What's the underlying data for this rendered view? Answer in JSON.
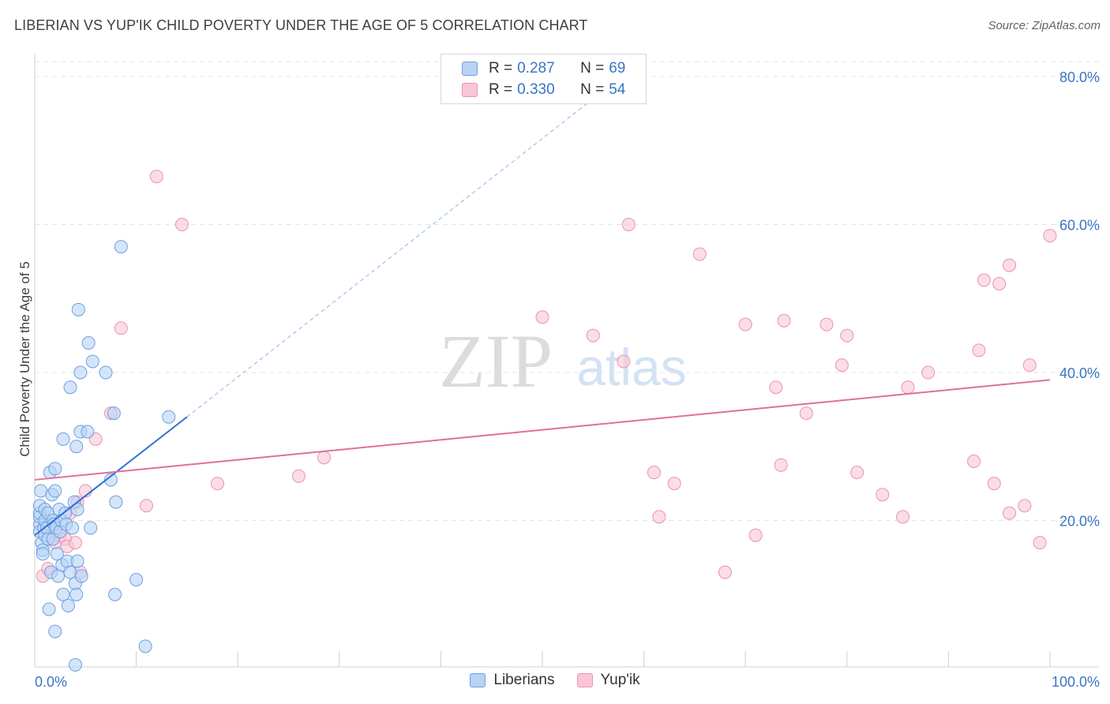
{
  "title": "LIBERIAN VS YUP'IK CHILD POVERTY UNDER THE AGE OF 5 CORRELATION CHART",
  "source": "Source: ZipAtlas.com",
  "watermark": {
    "zip": "ZIP",
    "atlas": "atlas"
  },
  "legend": {
    "rows": [
      {
        "r_label": "R =",
        "r_value": "0.287",
        "n_label": "N =",
        "n_value": "69"
      },
      {
        "r_label": "R =",
        "r_value": "0.330",
        "n_label": "N =",
        "n_value": "54"
      }
    ]
  },
  "bottom_legend": {
    "liberians": "Liberians",
    "yupik": "Yup'ik"
  },
  "colors": {
    "liberians_fill": "#b8d3f5",
    "liberians_stroke": "#6d9fe0",
    "liberians_line": "#2f6fd1",
    "yupik_fill": "#f8c6d6",
    "yupik_stroke": "#ea93b0",
    "yupik_line": "#e07097",
    "tick_text": "#3a75c4",
    "grid": "#e3e3e3"
  },
  "chart_data": {
    "type": "scatter",
    "title": "LIBERIAN VS YUP'IK CHILD POVERTY UNDER THE AGE OF 5 CORRELATION CHART",
    "xlabel": "",
    "ylabel": "Child Poverty Under the Age of 5",
    "xlim": [
      0,
      100
    ],
    "ylim": [
      0,
      80
    ],
    "x_tick_labels": {
      "0": "0.0%",
      "100": "100.0%"
    },
    "y_ticks": [
      20,
      40,
      60,
      80
    ],
    "y_tick_labels": [
      "20.0%",
      "40.0%",
      "60.0%",
      "80.0%"
    ],
    "grid": true,
    "legend_position": "top-center",
    "series": [
      {
        "name": "Liberians",
        "r": 0.287,
        "n": 69,
        "trend": {
          "x": [
            0,
            15
          ],
          "y": [
            18,
            34
          ],
          "extended_x": [
            15,
            55
          ],
          "extended_y": [
            34,
            77
          ]
        },
        "points": [
          [
            0.5,
            19.5
          ],
          [
            0.5,
            18.5
          ],
          [
            0.5,
            20.5
          ],
          [
            0.5,
            21
          ],
          [
            0.5,
            22
          ],
          [
            0.6,
            24
          ],
          [
            0.7,
            17
          ],
          [
            0.8,
            16
          ],
          [
            0.8,
            15.5
          ],
          [
            0.9,
            19
          ],
          [
            1,
            20
          ],
          [
            1,
            18
          ],
          [
            1,
            21.5
          ],
          [
            1.2,
            19
          ],
          [
            1.3,
            21
          ],
          [
            1.3,
            17.5
          ],
          [
            1.4,
            8
          ],
          [
            1.5,
            26.5
          ],
          [
            1.6,
            13
          ],
          [
            1.7,
            23.5
          ],
          [
            1.8,
            20
          ],
          [
            1.8,
            17.5
          ],
          [
            1.9,
            19.5
          ],
          [
            2,
            24
          ],
          [
            2,
            27
          ],
          [
            2,
            5
          ],
          [
            2.1,
            19
          ],
          [
            2.2,
            15.5
          ],
          [
            2.3,
            12.5
          ],
          [
            2.4,
            21.5
          ],
          [
            2.5,
            18.5
          ],
          [
            2.6,
            20
          ],
          [
            2.7,
            14
          ],
          [
            2.8,
            10
          ],
          [
            2.8,
            31
          ],
          [
            3,
            21
          ],
          [
            3.1,
            19.5
          ],
          [
            3.2,
            14.5
          ],
          [
            3.3,
            8.5
          ],
          [
            3.5,
            38
          ],
          [
            3.5,
            13
          ],
          [
            3.7,
            19
          ],
          [
            3.9,
            22.5
          ],
          [
            4,
            0.5
          ],
          [
            4,
            11.5
          ],
          [
            4.1,
            30
          ],
          [
            4.1,
            10
          ],
          [
            4.2,
            14.5
          ],
          [
            4.2,
            21.5
          ],
          [
            4.3,
            48.5
          ],
          [
            4.5,
            32
          ],
          [
            4.5,
            40
          ],
          [
            4.6,
            12.5
          ],
          [
            5.2,
            32
          ],
          [
            5.3,
            44
          ],
          [
            5.5,
            19
          ],
          [
            5.7,
            41.5
          ],
          [
            7,
            40
          ],
          [
            7.5,
            25.5
          ],
          [
            7.8,
            34.5
          ],
          [
            7.9,
            10
          ],
          [
            8,
            22.5
          ],
          [
            8.5,
            57
          ],
          [
            10,
            12
          ],
          [
            10.9,
            3
          ],
          [
            13.2,
            34
          ]
        ]
      },
      {
        "name": "Yup'ik",
        "r": 0.33,
        "n": 54,
        "trend": {
          "x": [
            0,
            100
          ],
          "y": [
            25.5,
            39
          ]
        },
        "points": [
          [
            0.8,
            12.5
          ],
          [
            1.3,
            13.5
          ],
          [
            2,
            17
          ],
          [
            2.5,
            18
          ],
          [
            3,
            17.5
          ],
          [
            3.2,
            16.5
          ],
          [
            3.5,
            21
          ],
          [
            4,
            17
          ],
          [
            4.2,
            22.5
          ],
          [
            4.5,
            13
          ],
          [
            5,
            24
          ],
          [
            6,
            31
          ],
          [
            7.5,
            34.5
          ],
          [
            8.5,
            46
          ],
          [
            11,
            22
          ],
          [
            12,
            66.5
          ],
          [
            14.5,
            60
          ],
          [
            18,
            25
          ],
          [
            26,
            26
          ],
          [
            28.5,
            28.5
          ],
          [
            50,
            47.5
          ],
          [
            55,
            45
          ],
          [
            58,
            41.5
          ],
          [
            58.5,
            60
          ],
          [
            61,
            26.5
          ],
          [
            61.5,
            20.5
          ],
          [
            63,
            25
          ],
          [
            65.5,
            56
          ],
          [
            68,
            13
          ],
          [
            70,
            46.5
          ],
          [
            71,
            18
          ],
          [
            73.5,
            27.5
          ],
          [
            73,
            38
          ],
          [
            73.8,
            47
          ],
          [
            76,
            34.5
          ],
          [
            78,
            46.5
          ],
          [
            79.5,
            41
          ],
          [
            80,
            45
          ],
          [
            81,
            26.5
          ],
          [
            83.5,
            23.5
          ],
          [
            85.5,
            20.5
          ],
          [
            86,
            38
          ],
          [
            88,
            40
          ],
          [
            92.5,
            28
          ],
          [
            93,
            43
          ],
          [
            93.5,
            52.5
          ],
          [
            94.5,
            25
          ],
          [
            95,
            52
          ],
          [
            96,
            54.5
          ],
          [
            96,
            21
          ],
          [
            97.5,
            22
          ],
          [
            98,
            41
          ],
          [
            99,
            17
          ],
          [
            100,
            58.5
          ]
        ]
      }
    ]
  }
}
